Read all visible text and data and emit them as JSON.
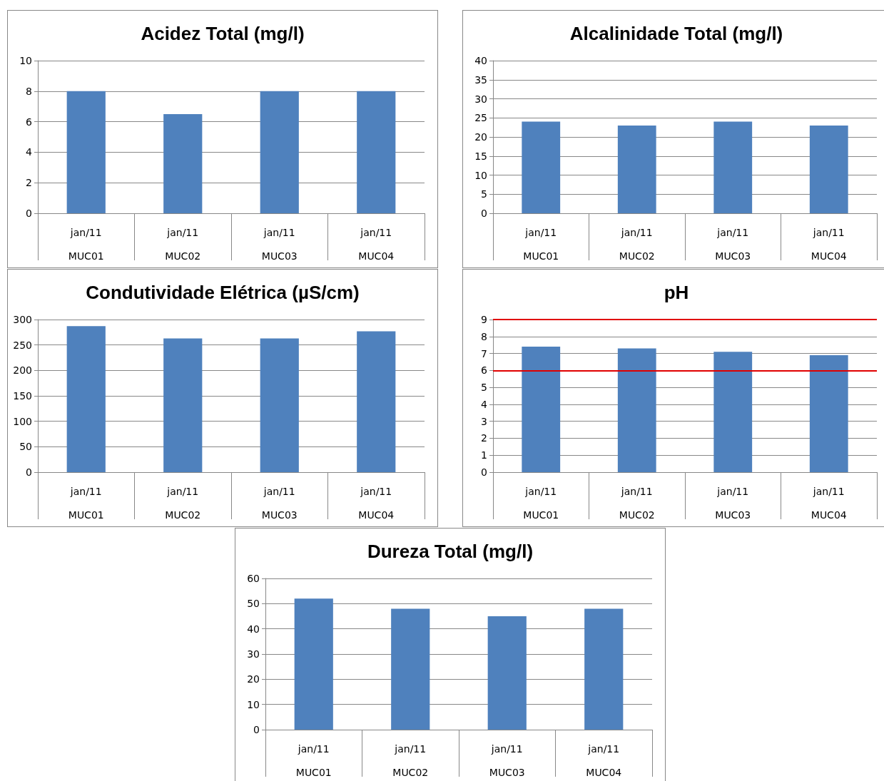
{
  "chart_data": [
    {
      "type": "bar",
      "title": "Acidez Total (mg/l)",
      "categories": [
        "jan/11\nMUC01",
        "jan/11\nMUC02",
        "jan/11\nMUC03",
        "jan/11\nMUC04"
      ],
      "values": [
        8,
        6.5,
        8,
        8
      ],
      "color": "#4f81bd",
      "ylim": [
        0,
        10
      ],
      "yticks": [
        0,
        2,
        4,
        6,
        8,
        10
      ],
      "grid": "y"
    },
    {
      "type": "bar",
      "title": "Alcalinidade Total (mg/l)",
      "categories": [
        "jan/11\nMUC01",
        "jan/11\nMUC02",
        "jan/11\nMUC03",
        "jan/11\nMUC04"
      ],
      "values": [
        24,
        23,
        24,
        23
      ],
      "color": "#4f81bd",
      "ylim": [
        0,
        40
      ],
      "yticks": [
        0,
        5,
        10,
        15,
        20,
        25,
        30,
        35,
        40
      ],
      "grid": "y"
    },
    {
      "type": "bar",
      "title": "Condutividade Elétrica (µS/cm)",
      "categories": [
        "jan/11\nMUC01",
        "jan/11\nMUC02",
        "jan/11\nMUC03",
        "jan/11\nMUC04"
      ],
      "values": [
        287,
        263,
        263,
        277
      ],
      "color": "#4f81bd",
      "ylim": [
        0,
        300
      ],
      "yticks": [
        0,
        50,
        100,
        150,
        200,
        250,
        300
      ],
      "grid": "y"
    },
    {
      "type": "bar",
      "title": "pH",
      "categories": [
        "jan/11\nMUC01",
        "jan/11\nMUC02",
        "jan/11\nMUC03",
        "jan/11\nMUC04"
      ],
      "values": [
        7.4,
        7.3,
        7.1,
        6.9
      ],
      "color": "#4f81bd",
      "ylim": [
        0,
        9
      ],
      "yticks": [
        0,
        1,
        2,
        3,
        4,
        5,
        6,
        7,
        8,
        9
      ],
      "grid": "y",
      "ref_lines": [
        {
          "axis": "y",
          "value": 6,
          "color": "#e00000"
        },
        {
          "axis": "y",
          "value": 9,
          "color": "#e00000"
        }
      ]
    },
    {
      "type": "bar",
      "title": "Dureza Total (mg/l)",
      "categories": [
        "jan/11\nMUC01",
        "jan/11\nMUC02",
        "jan/11\nMUC03",
        "jan/11\nMUC04"
      ],
      "values": [
        52,
        48,
        45,
        48
      ],
      "color": "#4f81bd",
      "ylim": [
        0,
        60
      ],
      "yticks": [
        0,
        10,
        20,
        30,
        40,
        50,
        60
      ],
      "grid": "y"
    }
  ]
}
